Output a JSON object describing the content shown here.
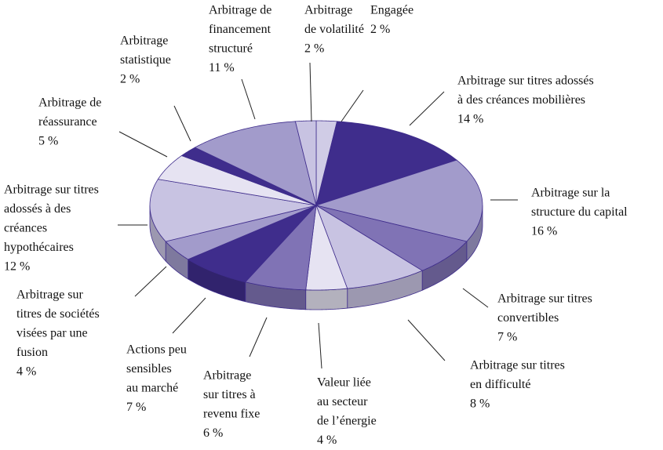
{
  "chart_data": {
    "type": "pie",
    "categories": [
      [
        "Engagée"
      ],
      [
        "Arbitrage sur titres adossés",
        "à des créances mobilières"
      ],
      [
        "Arbitrage sur la",
        "structure du capital"
      ],
      [
        "Arbitrage sur titres",
        "convertibles"
      ],
      [
        "Arbitrage sur titres",
        "en difficulté"
      ],
      [
        "Valeur liée",
        "au secteur",
        "de l’énergie"
      ],
      [
        "Arbitrage",
        "sur titres à",
        "revenu fixe"
      ],
      [
        "Actions peu",
        "sensibles",
        "au marché"
      ],
      [
        "Arbitrage sur",
        "titres de sociétés",
        "visées par une",
        "fusion"
      ],
      [
        "Arbitrage sur titres",
        "adossés à des",
        "créances",
        "hypothécaires"
      ],
      [
        "Arbitrage de",
        "réassurance"
      ],
      [
        "Arbitrage",
        "statistique"
      ],
      [
        "Arbitrage de",
        "financement",
        "structuré"
      ],
      [
        "Arbitrage",
        "de volatilité"
      ]
    ],
    "values": [
      2,
      14,
      16,
      7,
      8,
      4,
      6,
      7,
      4,
      12,
      5,
      2,
      11,
      2
    ],
    "value_labels": [
      "2 %",
      "14 %",
      "16 %",
      "7 %",
      "8 %",
      "4 %",
      "6 %",
      "7 %",
      "4 %",
      "12 %",
      "5 %",
      "2 %",
      "11 %",
      "2 %"
    ],
    "colors": [
      "#d0cce6",
      "#3f2d8c",
      "#a29bcb",
      "#8073b5",
      "#c8c3e2",
      "#e6e3f2",
      "#8073b5",
      "#3f2d8c",
      "#a29bcb",
      "#c8c3e2",
      "#e6e3f2",
      "#3f2d8c",
      "#a29bcb",
      "#c8c3e2"
    ]
  }
}
